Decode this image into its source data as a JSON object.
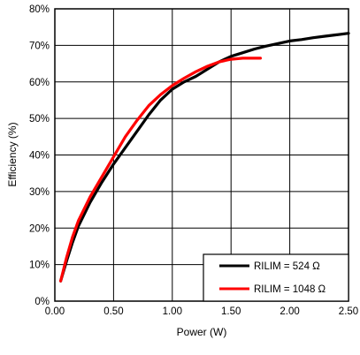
{
  "chart_data": {
    "type": "line",
    "title": "",
    "xlabel": "Power (W)",
    "ylabel": "Efficiency (%)",
    "xlim": [
      0,
      2.5
    ],
    "ylim": [
      0,
      80
    ],
    "x_ticks": [
      0,
      0.5,
      1.0,
      1.5,
      2.0,
      2.5
    ],
    "x_tick_labels": [
      "0.00",
      "0.50",
      "1.00",
      "1.50",
      "2.00",
      "2.50"
    ],
    "y_ticks": [
      0,
      10,
      20,
      30,
      40,
      50,
      60,
      70,
      80
    ],
    "y_tick_labels": [
      "0%",
      "10%",
      "20%",
      "30%",
      "40%",
      "50%",
      "60%",
      "70%",
      "80%"
    ],
    "grid": true,
    "legend_position": "bottom-right",
    "series": [
      {
        "name": "RILIM = 524 Ω",
        "color": "#000000",
        "x": [
          0.05,
          0.1,
          0.15,
          0.2,
          0.3,
          0.4,
          0.5,
          0.6,
          0.7,
          0.8,
          0.9,
          1.0,
          1.1,
          1.2,
          1.3,
          1.4,
          1.5,
          1.6,
          1.7,
          1.8,
          1.9,
          2.0,
          2.1,
          2.2,
          2.3,
          2.4,
          2.5
        ],
        "y": [
          5.5,
          11,
          16,
          20.5,
          27,
          32.5,
          37.5,
          42,
          46.5,
          51,
          55,
          58,
          60,
          61.5,
          63.5,
          65.5,
          67,
          68,
          69,
          69.8,
          70.5,
          71.2,
          71.6,
          72.1,
          72.5,
          72.9,
          73.3
        ]
      },
      {
        "name": "RILIM = 1048 Ω",
        "color": "#ff0000",
        "x": [
          0.05,
          0.1,
          0.15,
          0.2,
          0.3,
          0.4,
          0.5,
          0.6,
          0.7,
          0.8,
          0.9,
          1.0,
          1.1,
          1.2,
          1.3,
          1.4,
          1.5,
          1.6,
          1.7,
          1.75
        ],
        "y": [
          5.5,
          12,
          17.5,
          22,
          28.5,
          34,
          39.5,
          45,
          49.5,
          53.5,
          56.5,
          59,
          61,
          62.8,
          64.3,
          65.5,
          66.2,
          66.5,
          66.5,
          66.5
        ]
      }
    ]
  }
}
